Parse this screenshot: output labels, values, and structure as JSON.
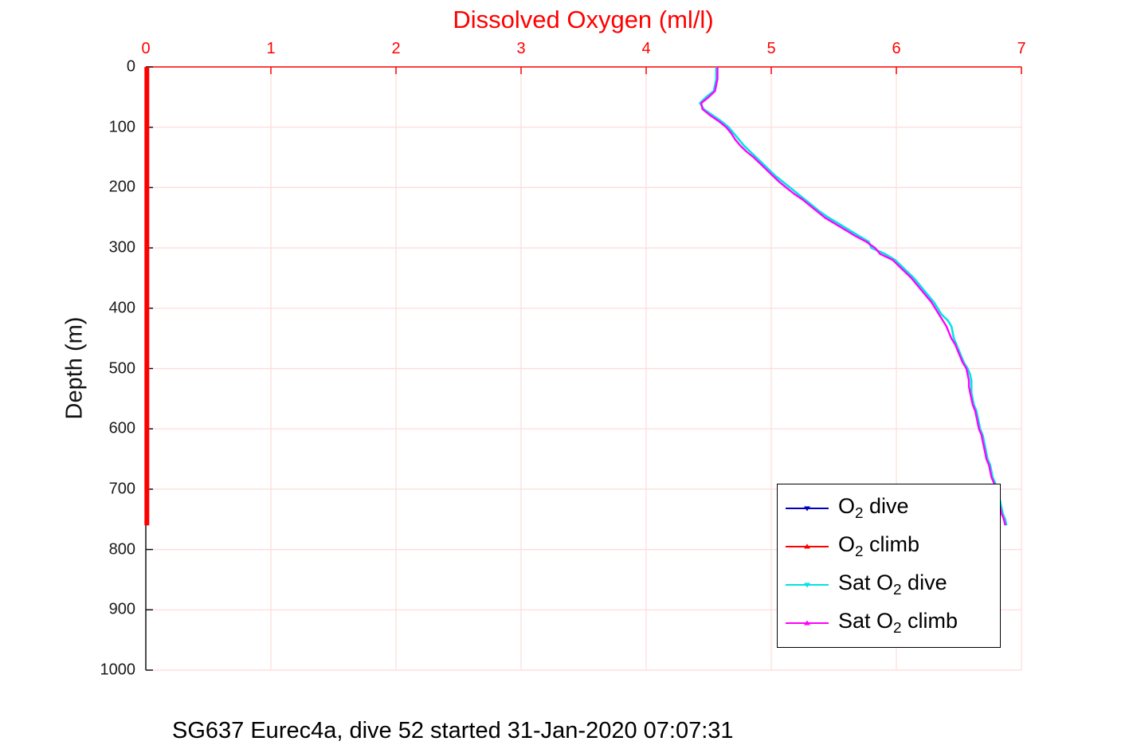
{
  "caption": "SG637 Eurec4a, dive 52 started 31-Jan-2020 07:07:31",
  "chart_data": {
    "type": "line",
    "title": "Dissolved Oxygen (ml/l)",
    "ylabel": "Depth (m)",
    "x_axis_location": "top",
    "y_axis_reversed": true,
    "grid": true,
    "legend_position": "lower-right-inside",
    "xlim": [
      0,
      7
    ],
    "ylim": [
      0,
      1000
    ],
    "x_ticks": [
      0,
      1,
      2,
      3,
      4,
      5,
      6,
      7
    ],
    "y_ticks": [
      0,
      100,
      200,
      300,
      400,
      500,
      600,
      700,
      800,
      900,
      1000
    ],
    "colors": {
      "title": "#ff0000",
      "x_axis": "#ff0000",
      "y_axis": "#111111",
      "grid": "#ffdada",
      "o2_dive": "#0000c0",
      "o2_climb": "#ff0000",
      "sat_o2_dive": "#00e4e4",
      "sat_o2_climb": "#ff00ff"
    },
    "depths": [
      0,
      10,
      20,
      30,
      40,
      50,
      60,
      70,
      80,
      90,
      100,
      110,
      120,
      130,
      140,
      150,
      160,
      170,
      180,
      190,
      200,
      210,
      220,
      230,
      240,
      250,
      260,
      270,
      280,
      290,
      300,
      310,
      320,
      330,
      340,
      350,
      360,
      370,
      380,
      390,
      400,
      410,
      420,
      430,
      440,
      450,
      460,
      470,
      480,
      490,
      500,
      510,
      520,
      530,
      540,
      550,
      560,
      570,
      580,
      590,
      600,
      610,
      620,
      630,
      640,
      650,
      660,
      670,
      680,
      690,
      700,
      710,
      720,
      730,
      740,
      750,
      760
    ],
    "series": [
      {
        "id": "o2-dive",
        "name": "O2 dive",
        "color": "#0000c0",
        "width": 2.5,
        "depths": [
          0,
          760
        ],
        "values": [
          0.008,
          0.008
        ]
      },
      {
        "id": "o2-climb",
        "name": "O2 climb",
        "color": "#ff0000",
        "width": 6,
        "depths": [
          0,
          760
        ],
        "values": [
          0.008,
          0.008
        ]
      },
      {
        "id": "sat-o2-dive",
        "name": "Sat O2 dive",
        "color": "#00e4e4",
        "width": 2.6,
        "values": [
          4.56,
          4.56,
          4.56,
          4.55,
          4.54,
          4.48,
          4.43,
          4.46,
          4.53,
          4.6,
          4.66,
          4.7,
          4.74,
          4.78,
          4.83,
          4.88,
          4.93,
          4.98,
          5.03,
          5.09,
          5.15,
          5.21,
          5.27,
          5.33,
          5.39,
          5.46,
          5.54,
          5.62,
          5.7,
          5.78,
          5.8,
          5.91,
          5.99,
          6.04,
          6.09,
          6.14,
          6.18,
          6.22,
          6.26,
          6.3,
          6.33,
          6.36,
          6.41,
          6.44,
          6.45,
          6.46,
          6.48,
          6.5,
          6.52,
          6.54,
          6.57,
          6.59,
          6.6,
          6.6,
          6.6,
          6.61,
          6.62,
          6.64,
          6.65,
          6.66,
          6.67,
          6.69,
          6.7,
          6.71,
          6.72,
          6.73,
          6.75,
          6.76,
          6.77,
          6.79,
          6.8,
          6.82,
          6.83,
          6.84,
          6.85,
          6.87,
          6.88
        ]
      },
      {
        "id": "sat-o2-climb",
        "name": "Sat O2 climb",
        "color": "#ff00ff",
        "width": 2.4,
        "values": [
          4.57,
          4.57,
          4.57,
          4.56,
          4.55,
          4.5,
          4.44,
          4.45,
          4.51,
          4.58,
          4.64,
          4.68,
          4.71,
          4.75,
          4.8,
          4.86,
          4.91,
          4.96,
          5.01,
          5.06,
          5.12,
          5.18,
          5.25,
          5.31,
          5.37,
          5.43,
          5.51,
          5.59,
          5.67,
          5.76,
          5.83,
          5.87,
          5.97,
          6.02,
          6.07,
          6.12,
          6.16,
          6.2,
          6.24,
          6.28,
          6.31,
          6.34,
          6.37,
          6.4,
          6.42,
          6.44,
          6.47,
          6.49,
          6.51,
          6.53,
          6.56,
          6.57,
          6.58,
          6.58,
          6.59,
          6.6,
          6.61,
          6.63,
          6.64,
          6.65,
          6.66,
          6.68,
          6.69,
          6.7,
          6.71,
          6.72,
          6.74,
          6.75,
          6.76,
          6.78,
          6.79,
          6.81,
          6.82,
          6.83,
          6.84,
          6.86,
          6.87
        ]
      }
    ],
    "legend": [
      {
        "id": "o2-dive",
        "color": "#0000c0",
        "marker": "v",
        "parts": [
          {
            "t": "O"
          },
          {
            "t": "2",
            "sub": true
          },
          {
            "t": " dive"
          }
        ]
      },
      {
        "id": "o2-climb",
        "color": "#ff0000",
        "marker": "^",
        "parts": [
          {
            "t": "O"
          },
          {
            "t": "2",
            "sub": true
          },
          {
            "t": " climb"
          }
        ]
      },
      {
        "id": "sat-o2-dive",
        "color": "#00e4e4",
        "marker": "v",
        "parts": [
          {
            "t": "Sat O"
          },
          {
            "t": "2",
            "sub": true
          },
          {
            "t": " dive"
          }
        ]
      },
      {
        "id": "sat-o2-climb",
        "color": "#ff00ff",
        "marker": "^",
        "parts": [
          {
            "t": "Sat O"
          },
          {
            "t": "2",
            "sub": true
          },
          {
            "t": " climb"
          }
        ]
      }
    ]
  }
}
